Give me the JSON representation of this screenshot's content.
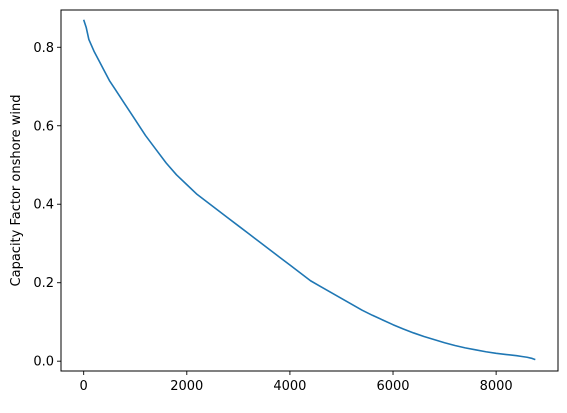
{
  "chart_data": {
    "type": "line",
    "title": "",
    "xlabel": "",
    "ylabel": "Capacity Factor onshore wind",
    "xlim": [
      -440,
      9200
    ],
    "ylim": [
      -0.025,
      0.895
    ],
    "xticks": [
      0,
      2000,
      4000,
      6000,
      8000
    ],
    "xtick_labels": [
      "0",
      "2000",
      "4000",
      "6000",
      "8000"
    ],
    "yticks": [
      0.0,
      0.2,
      0.4,
      0.6,
      0.8
    ],
    "ytick_labels": [
      "0.0",
      "0.2",
      "0.4",
      "0.6",
      "0.8"
    ],
    "grid": false,
    "series_color": "#1f77b4",
    "series": [
      {
        "name": "",
        "x": [
          0,
          50,
          100,
          200,
          300,
          400,
          500,
          600,
          800,
          1000,
          1200,
          1400,
          1600,
          1800,
          2000,
          2200,
          2400,
          2600,
          2800,
          3000,
          3200,
          3400,
          3600,
          3800,
          4000,
          4200,
          4400,
          4600,
          4800,
          5000,
          5200,
          5400,
          5600,
          5800,
          6000,
          6200,
          6400,
          6600,
          6800,
          7000,
          7200,
          7400,
          7600,
          7800,
          8000,
          8200,
          8400,
          8500,
          8600,
          8700,
          8760
        ],
        "y": [
          0.87,
          0.85,
          0.82,
          0.79,
          0.765,
          0.74,
          0.715,
          0.695,
          0.655,
          0.615,
          0.575,
          0.54,
          0.505,
          0.475,
          0.45,
          0.425,
          0.405,
          0.385,
          0.365,
          0.345,
          0.325,
          0.305,
          0.285,
          0.265,
          0.245,
          0.225,
          0.205,
          0.19,
          0.175,
          0.16,
          0.145,
          0.13,
          0.117,
          0.105,
          0.093,
          0.082,
          0.072,
          0.063,
          0.055,
          0.047,
          0.04,
          0.034,
          0.029,
          0.024,
          0.02,
          0.017,
          0.014,
          0.012,
          0.01,
          0.007,
          0.004
        ]
      }
    ]
  }
}
